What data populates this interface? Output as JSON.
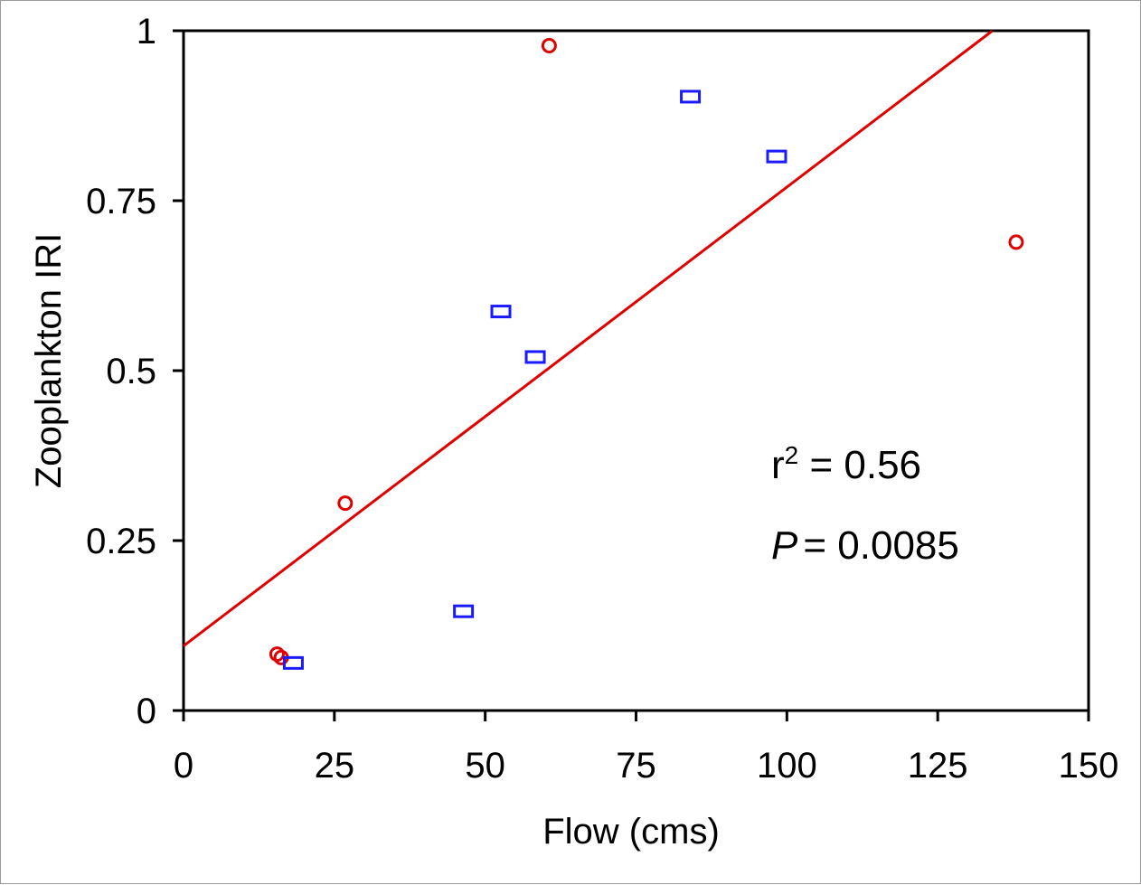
{
  "chart_data": {
    "type": "scatter",
    "xlabel": "Flow (cms)",
    "ylabel": "Zooplankton IRI",
    "xlim": [
      0,
      150
    ],
    "ylim": [
      0,
      1
    ],
    "xticks": [
      0,
      25,
      50,
      75,
      100,
      125,
      150
    ],
    "yticks": [
      0,
      0.25,
      0.5,
      0.75,
      1
    ],
    "xtick_labels": [
      "0",
      "25",
      "50",
      "75",
      "100",
      "125",
      "150"
    ],
    "ytick_labels": [
      "0",
      "0.25",
      "0.5",
      "0.75",
      "1"
    ],
    "grid": false,
    "series": [
      {
        "marker": "circle",
        "color": "#e00000",
        "points": [
          [
            15.5,
            0.083
          ],
          [
            16.2,
            0.078
          ],
          [
            26.8,
            0.305
          ],
          [
            60.6,
            0.978
          ],
          [
            138.0,
            0.689
          ]
        ]
      },
      {
        "marker": "square",
        "color": "#1a1aff",
        "points": [
          [
            18.2,
            0.07
          ],
          [
            46.4,
            0.146
          ],
          [
            52.6,
            0.587
          ],
          [
            58.3,
            0.52
          ],
          [
            84.0,
            0.903
          ],
          [
            98.3,
            0.815
          ]
        ]
      }
    ],
    "fit_line": {
      "color": "#e00000",
      "intercept": 0.095,
      "slope": 0.00675,
      "x_range": [
        0,
        134
      ]
    },
    "annotations": {
      "r2_label": "r",
      "r2_superscript": "2",
      "r2_value": " = 0.56",
      "p_label": "P",
      "p_value": "= 0.0085"
    }
  }
}
